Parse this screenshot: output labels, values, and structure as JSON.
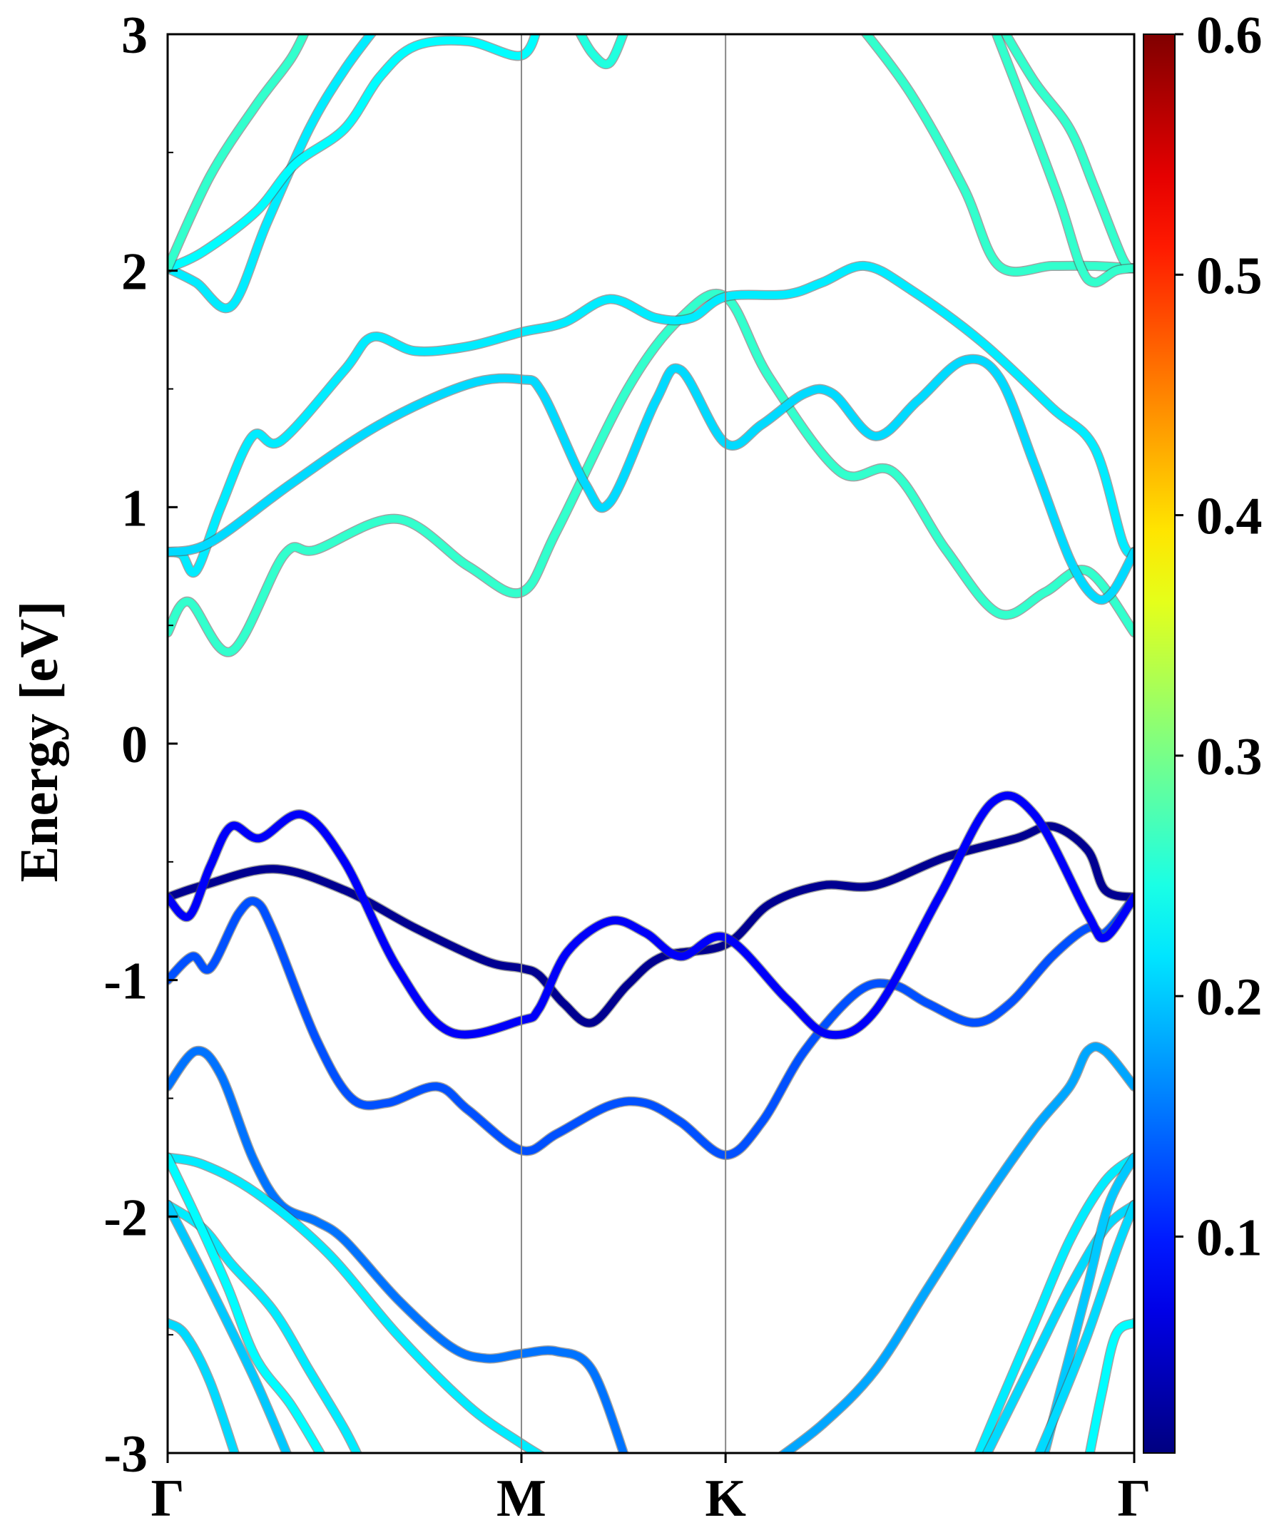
{
  "chart_data": {
    "type": "line",
    "title": "",
    "xlabel": "",
    "ylabel": "Energy [eV]",
    "ylim": [
      -3,
      3
    ],
    "xlim": [
      0,
      2.732
    ],
    "y_ticks": [
      -3,
      -2,
      -1,
      0,
      1,
      2,
      3
    ],
    "y_tick_labels": [
      "-3",
      "-2",
      "-1",
      "0",
      "1",
      "2",
      "3"
    ],
    "k_points": [
      {
        "label": "Γ",
        "x": 0
      },
      {
        "label": "M",
        "x": 1.0
      },
      {
        "label": "K",
        "x": 1.577
      },
      {
        "label": "Γ",
        "x": 2.732
      }
    ],
    "grid": false,
    "colorbar": {
      "colormap": "jet",
      "range": [
        0.01,
        0.6
      ],
      "ticks": [
        0.1,
        0.2,
        0.3,
        0.4,
        0.5,
        0.6
      ],
      "tick_labels": [
        "0.1",
        "0.2",
        "0.3",
        "0.4",
        "0.5",
        "0.6"
      ]
    },
    "bands": [
      {
        "c": 0.26,
        "points": [
          [
            0,
            0.47
          ],
          [
            0.06,
            0.6
          ],
          [
            0.18,
            0.39
          ],
          [
            0.33,
            0.8
          ],
          [
            0.42,
            0.82
          ],
          [
            0.65,
            0.95
          ],
          [
            0.85,
            0.75
          ],
          [
            1.0,
            0.64
          ],
          [
            1.1,
            0.9
          ],
          [
            1.3,
            1.5
          ],
          [
            1.45,
            1.8
          ],
          [
            1.577,
            1.89
          ],
          [
            1.7,
            1.55
          ],
          [
            1.9,
            1.15
          ],
          [
            2.05,
            1.15
          ],
          [
            2.2,
            0.82
          ],
          [
            2.35,
            0.55
          ],
          [
            2.48,
            0.64
          ],
          [
            2.6,
            0.73
          ],
          [
            2.732,
            0.47
          ]
        ]
      },
      {
        "c": 0.22,
        "points": [
          [
            0,
            0.81
          ],
          [
            0.04,
            0.8
          ],
          [
            0.08,
            0.73
          ],
          [
            0.15,
            1.0
          ],
          [
            0.24,
            1.3
          ],
          [
            0.32,
            1.28
          ],
          [
            0.5,
            1.58
          ],
          [
            0.58,
            1.72
          ],
          [
            0.7,
            1.66
          ],
          [
            0.85,
            1.68
          ],
          [
            1.0,
            1.74
          ],
          [
            1.12,
            1.78
          ],
          [
            1.25,
            1.88
          ],
          [
            1.38,
            1.8
          ],
          [
            1.48,
            1.8
          ],
          [
            1.577,
            1.89
          ],
          [
            1.75,
            1.9
          ],
          [
            1.85,
            1.95
          ],
          [
            1.97,
            2.02
          ],
          [
            2.1,
            1.92
          ],
          [
            2.3,
            1.7
          ],
          [
            2.5,
            1.42
          ],
          [
            2.62,
            1.25
          ],
          [
            2.7,
            0.85
          ],
          [
            2.732,
            0.81
          ]
        ]
      },
      {
        "c": 0.21,
        "points": [
          [
            0,
            0.81
          ],
          [
            0.12,
            0.85
          ],
          [
            0.35,
            1.1
          ],
          [
            0.6,
            1.35
          ],
          [
            0.85,
            1.52
          ],
          [
            1.0,
            1.54
          ],
          [
            1.06,
            1.48
          ],
          [
            1.18,
            1.1
          ],
          [
            1.25,
            1.02
          ],
          [
            1.38,
            1.45
          ],
          [
            1.45,
            1.58
          ],
          [
            1.577,
            1.27
          ],
          [
            1.68,
            1.35
          ],
          [
            1.8,
            1.48
          ],
          [
            1.88,
            1.48
          ],
          [
            2.0,
            1.3
          ],
          [
            2.12,
            1.45
          ],
          [
            2.25,
            1.62
          ],
          [
            2.35,
            1.55
          ],
          [
            2.45,
            1.18
          ],
          [
            2.55,
            0.78
          ],
          [
            2.62,
            0.62
          ],
          [
            2.67,
            0.64
          ],
          [
            2.732,
            0.81
          ]
        ]
      },
      {
        "c": 0.22,
        "points": [
          [
            0,
            2.01
          ],
          [
            0.08,
            1.95
          ],
          [
            0.18,
            1.85
          ],
          [
            0.28,
            2.2
          ],
          [
            0.4,
            2.6
          ],
          [
            0.5,
            2.85
          ],
          [
            0.6,
            3.05
          ]
        ]
      },
      {
        "c": 0.23,
        "points": [
          [
            0,
            2.01
          ],
          [
            0.1,
            2.08
          ],
          [
            0.25,
            2.25
          ],
          [
            0.36,
            2.45
          ],
          [
            0.5,
            2.6
          ],
          [
            0.6,
            2.82
          ],
          [
            0.7,
            2.95
          ],
          [
            0.85,
            2.97
          ],
          [
            1.0,
            2.91
          ],
          [
            1.05,
            3.05
          ]
        ]
      },
      {
        "c": 0.26,
        "points": [
          [
            0,
            2.01
          ],
          [
            0.12,
            2.4
          ],
          [
            0.25,
            2.7
          ],
          [
            0.35,
            2.9
          ],
          [
            0.4,
            3.05
          ]
        ]
      },
      {
        "c": 0.25,
        "points": [
          [
            1.15,
            3.05
          ],
          [
            1.2,
            2.92
          ],
          [
            1.25,
            2.88
          ],
          [
            1.3,
            3.05
          ]
        ]
      },
      {
        "c": 0.26,
        "points": [
          [
            1.95,
            3.05
          ],
          [
            2.1,
            2.75
          ],
          [
            2.25,
            2.35
          ],
          [
            2.35,
            2.02
          ],
          [
            2.5,
            2.02
          ],
          [
            2.62,
            2.02
          ],
          [
            2.732,
            2.01
          ]
        ]
      },
      {
        "c": 0.26,
        "points": [
          [
            2.35,
            3.05
          ],
          [
            2.45,
            2.8
          ],
          [
            2.55,
            2.6
          ],
          [
            2.62,
            2.35
          ],
          [
            2.7,
            2.05
          ],
          [
            2.732,
            2.01
          ]
        ]
      },
      {
        "c": 0.26,
        "points": [
          [
            2.33,
            3.05
          ],
          [
            2.42,
            2.7
          ],
          [
            2.52,
            2.3
          ],
          [
            2.58,
            2.02
          ],
          [
            2.62,
            1.95
          ],
          [
            2.68,
            2.0
          ],
          [
            2.732,
            2.01
          ]
        ]
      },
      {
        "c": 0.13,
        "points": [
          [
            0,
            -1.0
          ],
          [
            0.07,
            -0.9
          ],
          [
            0.12,
            -0.95
          ],
          [
            0.2,
            -0.72
          ],
          [
            0.25,
            -0.67
          ],
          [
            0.3,
            -0.8
          ],
          [
            0.42,
            -1.25
          ],
          [
            0.52,
            -1.5
          ],
          [
            0.62,
            -1.52
          ],
          [
            0.76,
            -1.45
          ],
          [
            0.85,
            -1.55
          ],
          [
            1.0,
            -1.72
          ],
          [
            1.1,
            -1.65
          ],
          [
            1.25,
            -1.53
          ],
          [
            1.35,
            -1.52
          ],
          [
            1.45,
            -1.6
          ],
          [
            1.577,
            -1.74
          ],
          [
            1.68,
            -1.6
          ],
          [
            1.8,
            -1.3
          ],
          [
            1.95,
            -1.05
          ],
          [
            2.05,
            -1.02
          ],
          [
            2.15,
            -1.1
          ],
          [
            2.28,
            -1.18
          ],
          [
            2.38,
            -1.1
          ],
          [
            2.5,
            -0.9
          ],
          [
            2.6,
            -0.78
          ],
          [
            2.65,
            -0.8
          ],
          [
            2.732,
            -0.65
          ]
        ]
      },
      {
        "c": 0.02,
        "points": [
          [
            0,
            -0.65
          ],
          [
            0.1,
            -0.6
          ],
          [
            0.3,
            -0.53
          ],
          [
            0.5,
            -0.62
          ],
          [
            0.7,
            -0.78
          ],
          [
            0.9,
            -0.92
          ],
          [
            1.0,
            -0.95
          ],
          [
            1.05,
            -0.98
          ],
          [
            1.12,
            -1.1
          ],
          [
            1.2,
            -1.18
          ],
          [
            1.3,
            -1.02
          ],
          [
            1.4,
            -0.9
          ],
          [
            1.577,
            -0.85
          ],
          [
            1.7,
            -0.68
          ],
          [
            1.85,
            -0.6
          ],
          [
            2.0,
            -0.6
          ],
          [
            2.2,
            -0.48
          ],
          [
            2.4,
            -0.4
          ],
          [
            2.5,
            -0.35
          ],
          [
            2.6,
            -0.45
          ],
          [
            2.65,
            -0.62
          ],
          [
            2.732,
            -0.65
          ]
        ]
      },
      {
        "c": 0.08,
        "points": [
          [
            0,
            -0.65
          ],
          [
            0.06,
            -0.73
          ],
          [
            0.12,
            -0.52
          ],
          [
            0.18,
            -0.35
          ],
          [
            0.26,
            -0.4
          ],
          [
            0.38,
            -0.3
          ],
          [
            0.5,
            -0.5
          ],
          [
            0.65,
            -0.95
          ],
          [
            0.8,
            -1.22
          ],
          [
            1.0,
            -1.17
          ],
          [
            1.05,
            -1.12
          ],
          [
            1.13,
            -0.88
          ],
          [
            1.25,
            -0.75
          ],
          [
            1.35,
            -0.8
          ],
          [
            1.45,
            -0.9
          ],
          [
            1.577,
            -0.82
          ],
          [
            1.75,
            -1.08
          ],
          [
            1.87,
            -1.23
          ],
          [
            2.0,
            -1.13
          ],
          [
            2.18,
            -0.65
          ],
          [
            2.33,
            -0.25
          ],
          [
            2.45,
            -0.3
          ],
          [
            2.6,
            -0.72
          ],
          [
            2.65,
            -0.82
          ],
          [
            2.732,
            -0.65
          ]
        ]
      },
      {
        "c": 0.15,
        "points": [
          [
            0,
            -1.45
          ],
          [
            0.08,
            -1.3
          ],
          [
            0.15,
            -1.4
          ],
          [
            0.24,
            -1.75
          ],
          [
            0.32,
            -1.95
          ],
          [
            0.42,
            -2.02
          ],
          [
            0.5,
            -2.1
          ],
          [
            0.65,
            -2.35
          ],
          [
            0.8,
            -2.55
          ],
          [
            0.9,
            -2.6
          ],
          [
            1.0,
            -2.58
          ],
          [
            1.1,
            -2.57
          ],
          [
            1.2,
            -2.65
          ],
          [
            1.3,
            -3.05
          ]
        ]
      },
      {
        "c": 0.18,
        "points": [
          [
            1.7,
            -3.05
          ],
          [
            1.85,
            -2.88
          ],
          [
            2.0,
            -2.65
          ],
          [
            2.15,
            -2.3
          ],
          [
            2.3,
            -1.95
          ],
          [
            2.45,
            -1.63
          ],
          [
            2.55,
            -1.45
          ],
          [
            2.6,
            -1.3
          ],
          [
            2.65,
            -1.3
          ],
          [
            2.732,
            -1.45
          ]
        ]
      },
      {
        "c": 0.22,
        "points": [
          [
            0,
            -1.75
          ],
          [
            0.1,
            -1.78
          ],
          [
            0.25,
            -1.9
          ],
          [
            0.45,
            -2.15
          ],
          [
            0.65,
            -2.5
          ],
          [
            0.85,
            -2.8
          ],
          [
            1.0,
            -2.96
          ],
          [
            1.1,
            -3.05
          ]
        ]
      },
      {
        "c": 0.22,
        "points": [
          [
            0,
            -1.95
          ],
          [
            0.1,
            -2.05
          ],
          [
            0.18,
            -2.2
          ],
          [
            0.3,
            -2.4
          ],
          [
            0.4,
            -2.65
          ],
          [
            0.5,
            -2.9
          ],
          [
            0.55,
            -3.05
          ]
        ]
      },
      {
        "c": 0.23,
        "points": [
          [
            0,
            -1.75
          ],
          [
            0.08,
            -2.0
          ],
          [
            0.17,
            -2.3
          ],
          [
            0.25,
            -2.6
          ],
          [
            0.35,
            -2.8
          ],
          [
            0.45,
            -3.05
          ]
        ]
      },
      {
        "c": 0.21,
        "points": [
          [
            0,
            -2.45
          ],
          [
            0.05,
            -2.5
          ],
          [
            0.12,
            -2.7
          ],
          [
            0.2,
            -3.05
          ]
        ]
      },
      {
        "c": 0.2,
        "points": [
          [
            0,
            -1.95
          ],
          [
            0.12,
            -2.3
          ],
          [
            0.25,
            -2.7
          ],
          [
            0.35,
            -3.05
          ]
        ]
      },
      {
        "c": 0.22,
        "points": [
          [
            2.732,
            -1.75
          ],
          [
            2.65,
            -1.85
          ],
          [
            2.55,
            -2.1
          ],
          [
            2.45,
            -2.45
          ],
          [
            2.35,
            -2.8
          ],
          [
            2.28,
            -3.05
          ]
        ]
      },
      {
        "c": 0.21,
        "points": [
          [
            2.732,
            -1.95
          ],
          [
            2.65,
            -2.05
          ],
          [
            2.55,
            -2.3
          ],
          [
            2.45,
            -2.6
          ],
          [
            2.35,
            -2.9
          ],
          [
            2.3,
            -3.05
          ]
        ]
      },
      {
        "c": 0.2,
        "points": [
          [
            2.732,
            -1.75
          ],
          [
            2.66,
            -1.95
          ],
          [
            2.6,
            -2.3
          ],
          [
            2.53,
            -2.7
          ],
          [
            2.47,
            -3.05
          ]
        ]
      },
      {
        "c": 0.23,
        "points": [
          [
            2.732,
            -2.45
          ],
          [
            2.68,
            -2.5
          ],
          [
            2.64,
            -2.75
          ],
          [
            2.6,
            -3.05
          ]
        ]
      },
      {
        "c": 0.21,
        "points": [
          [
            2.732,
            -1.95
          ],
          [
            2.68,
            -2.15
          ],
          [
            2.6,
            -2.5
          ],
          [
            2.52,
            -2.8
          ],
          [
            2.45,
            -3.05
          ]
        ]
      }
    ]
  }
}
